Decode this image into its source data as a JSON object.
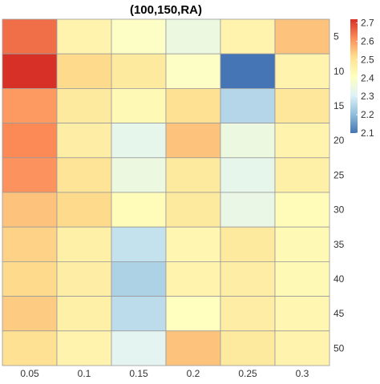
{
  "chart_data": {
    "type": "heatmap",
    "title": "(100,150,RA)",
    "xlabel": "",
    "ylabel": "",
    "x_categories": [
      "0.05",
      "0.1",
      "0.15",
      "0.2",
      "0.25",
      "0.3"
    ],
    "y_categories": [
      "5",
      "10",
      "15",
      "20",
      "25",
      "30",
      "35",
      "40",
      "45",
      "50"
    ],
    "values": [
      [
        2.65,
        2.45,
        2.4,
        2.35,
        2.45,
        2.55
      ],
      [
        2.72,
        2.52,
        2.48,
        2.4,
        2.1,
        2.45
      ],
      [
        2.6,
        2.48,
        2.43,
        2.51,
        2.25,
        2.49
      ],
      [
        2.62,
        2.47,
        2.33,
        2.55,
        2.35,
        2.45
      ],
      [
        2.61,
        2.5,
        2.35,
        2.48,
        2.33,
        2.46
      ],
      [
        2.55,
        2.52,
        2.42,
        2.48,
        2.34,
        2.42
      ],
      [
        2.53,
        2.46,
        2.27,
        2.44,
        2.48,
        2.43
      ],
      [
        2.52,
        2.47,
        2.24,
        2.45,
        2.47,
        2.43
      ],
      [
        2.54,
        2.46,
        2.26,
        2.41,
        2.47,
        2.44
      ],
      [
        2.51,
        2.45,
        2.32,
        2.55,
        2.48,
        2.45
      ]
    ],
    "colorbar": {
      "min": 2.1,
      "max": 2.72,
      "ticks": [
        2.1,
        2.2,
        2.3,
        2.4,
        2.5,
        2.6,
        2.7
      ],
      "tick_labels": [
        "2.1",
        "2.2",
        "2.3",
        "2.4",
        "2.5",
        "2.6",
        "2.7"
      ],
      "placement": "top-right",
      "colors": [
        "#4575b4",
        "#91bfdb",
        "#e0f3f8",
        "#ffffbf",
        "#fee090",
        "#fc8d59",
        "#d73027"
      ]
    },
    "grid": true,
    "y_labels_side": "right"
  }
}
